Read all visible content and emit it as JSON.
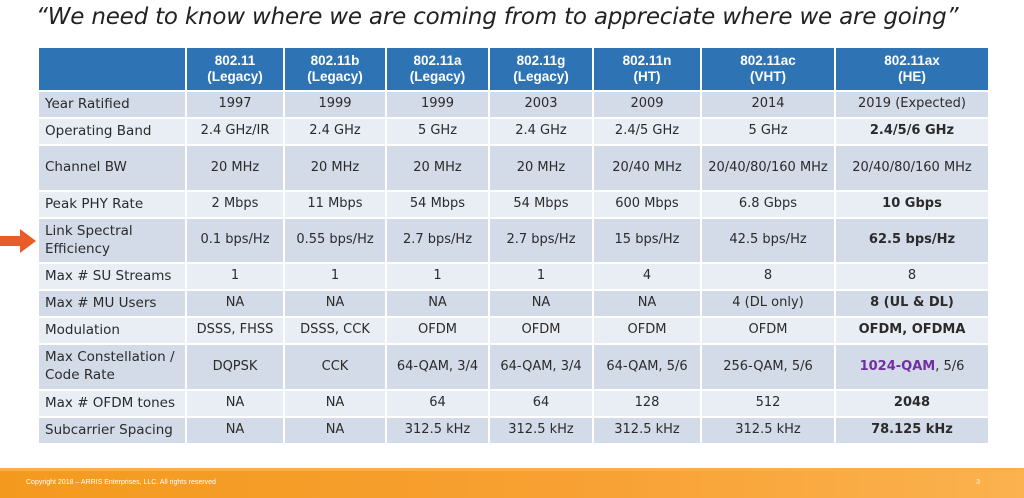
{
  "slide": {
    "title": "“We need to know where we are coming from to appreciate where we are going”",
    "footer": "Copyright 2018 – ARRIS Enterprises, LLC. All rights reserved",
    "page_number": "3",
    "arrow_icon": "right-arrow-icon",
    "colors": {
      "header": "#2e74b5",
      "row_odd": "#d3dae8",
      "row_even": "#e9edf4",
      "highlight": "#7030a0",
      "footer": "#f39a1e",
      "arrow": "#ea5b2a"
    }
  },
  "table": {
    "columns": [
      {
        "line1": "802.11",
        "line2": "(Legacy)"
      },
      {
        "line1": "802.11b",
        "line2": "(Legacy)"
      },
      {
        "line1": "802.11a",
        "line2": "(Legacy)"
      },
      {
        "line1": "802.11g",
        "line2": "(Legacy)"
      },
      {
        "line1": "802.11n",
        "line2": "(HT)"
      },
      {
        "line1": "802.11ac",
        "line2": "(VHT)"
      },
      {
        "line1": "802.11ax",
        "line2": "(HE)"
      }
    ],
    "rows": [
      {
        "label": "Year Ratified",
        "cells": [
          "1997",
          "1999",
          "1999",
          "2003",
          "2009",
          "2014",
          "2019 (Expected)"
        ]
      },
      {
        "label": "Operating Band",
        "cells": [
          "2.4 GHz/IR",
          "2.4 GHz",
          "5 GHz",
          "2.4 GHz",
          "2.4/5 GHz",
          "5 GHz",
          "2.4/5/6 GHz"
        ]
      },
      {
        "label": "Channel BW",
        "cells": [
          "20 MHz",
          "20 MHz",
          "20 MHz",
          "20 MHz",
          "20/40 MHz",
          "20/40/80/160 MHz",
          "20/40/80/160 MHz"
        ]
      },
      {
        "label": "Peak PHY Rate",
        "cells": [
          "2 Mbps",
          "11 Mbps",
          "54 Mbps",
          "54 Mbps",
          "600 Mbps",
          "6.8 Gbps",
          "10 Gbps"
        ]
      },
      {
        "label": "Link Spectral Efficiency",
        "cells": [
          "0.1 bps/Hz",
          "0.55 bps/Hz",
          "2.7 bps/Hz",
          "2.7 bps/Hz",
          "15 bps/Hz",
          "42.5 bps/Hz",
          "62.5 bps/Hz"
        ]
      },
      {
        "label": "Max # SU Streams",
        "cells": [
          "1",
          "1",
          "1",
          "1",
          "4",
          "8",
          "8"
        ]
      },
      {
        "label": "Max # MU Users",
        "cells": [
          "NA",
          "NA",
          "NA",
          "NA",
          "NA",
          "4 (DL only)",
          "8 (UL & DL)"
        ]
      },
      {
        "label": "Modulation",
        "cells": [
          "DSSS, FHSS",
          "DSSS, CCK",
          "OFDM",
          "OFDM",
          "OFDM",
          "OFDM",
          "OFDM, OFDMA"
        ]
      },
      {
        "label": "Max Constellation / Code Rate",
        "cells": [
          "DQPSK",
          "CCK",
          "64-QAM, 3/4",
          "64-QAM, 3/4",
          "64-QAM, 5/6",
          "256-QAM, 5/6",
          "1024-QAM, 5/6"
        ],
        "ax_bold_part": "1024-QAM",
        "ax_rest_part": ", 5/6"
      },
      {
        "label": "Max # OFDM tones",
        "cells": [
          "NA",
          "NA",
          "64",
          "64",
          "128",
          "512",
          "2048"
        ]
      },
      {
        "label": "Subcarrier Spacing",
        "cells": [
          "NA",
          "NA",
          "312.5 kHz",
          "312.5 kHz",
          "312.5 kHz",
          "312.5 kHz",
          "78.125 kHz"
        ]
      }
    ]
  }
}
